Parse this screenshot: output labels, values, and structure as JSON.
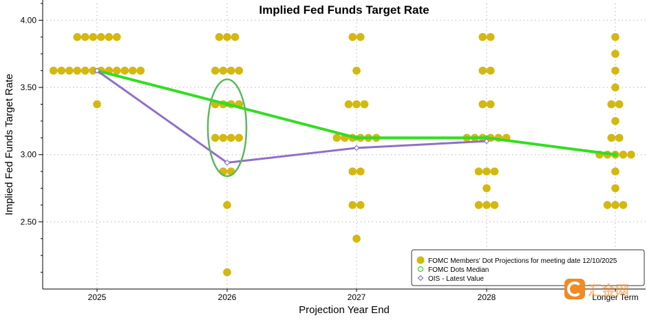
{
  "chart_data": {
    "type": "scatter",
    "title": "Implied Fed Funds Target Rate",
    "xlabel": "Projection Year End",
    "ylabel": "Implied Fed Funds Target Rate",
    "categories": [
      "2025",
      "2026",
      "2027",
      "2028",
      "Longer Term"
    ],
    "ylim": [
      2.0,
      4.125
    ],
    "yticks": [
      2.5,
      3.0,
      3.5,
      4.0
    ],
    "ytick_labels": [
      "2.50",
      "3.00",
      "3.50",
      "4.00"
    ],
    "grid": true,
    "legend_position": "bottom-right",
    "dots": [
      {
        "category": "2025",
        "counts": [
          [
            3.875,
            6
          ],
          [
            3.625,
            12
          ],
          [
            3.375,
            1
          ]
        ]
      },
      {
        "category": "2026",
        "counts": [
          [
            3.875,
            3
          ],
          [
            3.625,
            4
          ],
          [
            3.375,
            4
          ],
          [
            3.125,
            4
          ],
          [
            2.875,
            2
          ],
          [
            2.625,
            1
          ],
          [
            2.125,
            1
          ]
        ]
      },
      {
        "category": "2027",
        "counts": [
          [
            3.875,
            2
          ],
          [
            3.625,
            1
          ],
          [
            3.375,
            3
          ],
          [
            3.125,
            6
          ],
          [
            2.875,
            2
          ],
          [
            2.625,
            2
          ],
          [
            2.375,
            1
          ]
        ]
      },
      {
        "category": "2028",
        "counts": [
          [
            3.875,
            2
          ],
          [
            3.625,
            2
          ],
          [
            3.375,
            2
          ],
          [
            3.125,
            6
          ],
          [
            2.875,
            3
          ],
          [
            2.75,
            1
          ],
          [
            2.625,
            3
          ]
        ]
      },
      {
        "category": "Longer Term",
        "counts": [
          [
            3.875,
            1
          ],
          [
            3.75,
            1
          ],
          [
            3.625,
            1
          ],
          [
            3.5,
            1
          ],
          [
            3.375,
            2
          ],
          [
            3.25,
            1
          ],
          [
            3.125,
            2
          ],
          [
            3.0,
            5
          ],
          [
            2.875,
            1
          ],
          [
            2.75,
            1
          ],
          [
            2.625,
            3
          ]
        ]
      }
    ],
    "series": [
      {
        "name": "FOMC Dots Median",
        "color": "#33dd22",
        "x": [
          "2025",
          "2026",
          "2027",
          "2028",
          "Longer Term"
        ],
        "values": [
          3.625,
          3.375,
          3.125,
          3.125,
          3.0
        ]
      },
      {
        "name": "OIS - Latest Value",
        "color": "#8f6fc8",
        "x": [
          "2025",
          "2026",
          "2027",
          "2028"
        ],
        "values": [
          3.625,
          2.94,
          3.05,
          3.1
        ]
      }
    ],
    "legend": [
      "FOMC Members' Dot Projections for meeting date 12/10/2025",
      "FOMC Dots Median",
      "OIS - Latest Value"
    ],
    "annotation": {
      "type": "ellipse",
      "category": "2026",
      "color": "#5cb85c",
      "value_range": [
        2.85,
        3.55
      ]
    }
  },
  "colors": {
    "dot": "#d4b80f",
    "grid": "#b5b5b5"
  },
  "watermark": {
    "text": "汇金网"
  }
}
